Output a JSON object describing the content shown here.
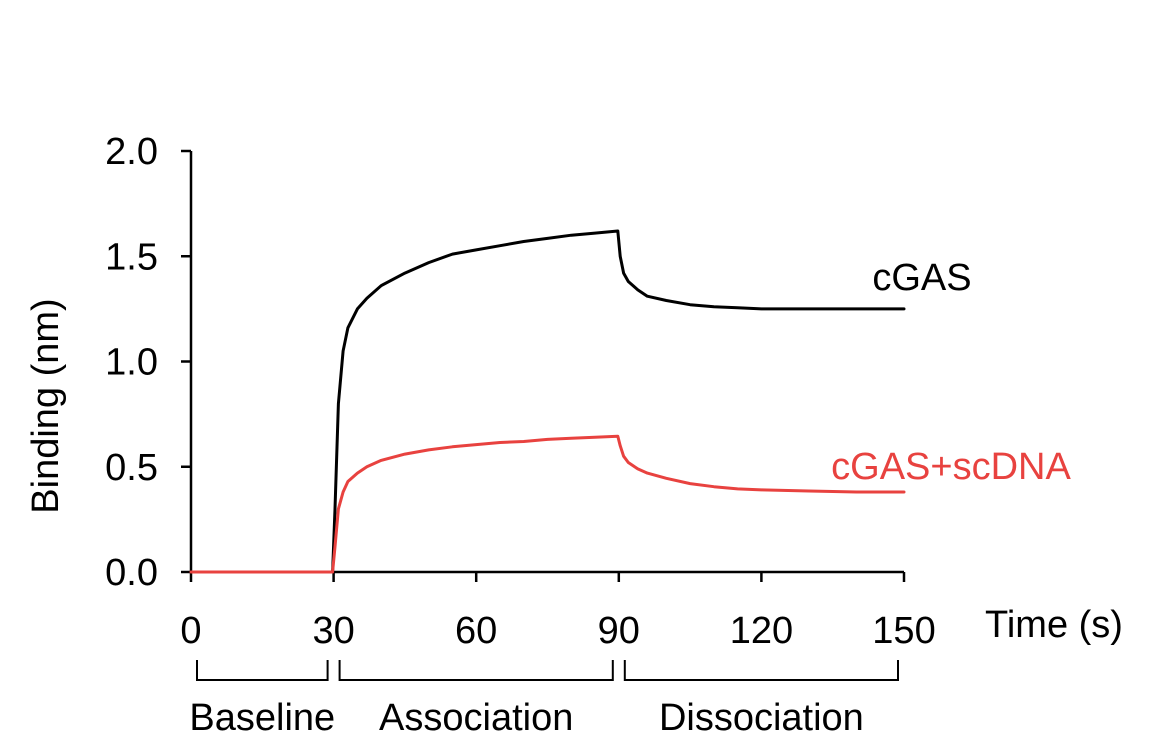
{
  "chart_data": {
    "type": "line",
    "title": "",
    "xlabel": "Time (s)",
    "ylabel": "Binding (nm)",
    "xlim": [
      0,
      150
    ],
    "ylim": [
      0,
      2.0
    ],
    "xticks": [
      0,
      30,
      60,
      90,
      120,
      150
    ],
    "yticks": [
      0.0,
      0.5,
      1.0,
      1.5,
      2.0
    ],
    "xtick_labels": [
      "0",
      "30",
      "60",
      "90",
      "120",
      "150"
    ],
    "ytick_labels": [
      "0.0",
      "0.5",
      "1.0",
      "1.5",
      "2.0"
    ],
    "grid": false,
    "legend": "inline-right",
    "phases": [
      {
        "label": "Baseline",
        "start": 0,
        "end": 30
      },
      {
        "label": "Association",
        "start": 30,
        "end": 90
      },
      {
        "label": "Dissociation",
        "start": 90,
        "end": 150
      }
    ],
    "series": [
      {
        "name": "cGAS",
        "color": "#000000",
        "x": [
          0,
          10,
          20,
          29.8,
          30.3,
          31,
          32,
          33,
          35,
          37,
          40,
          45,
          50,
          55,
          60,
          65,
          70,
          75,
          80,
          85,
          89.8,
          90.3,
          91,
          92,
          94,
          96,
          100,
          105,
          110,
          115,
          120,
          130,
          140,
          150
        ],
        "y": [
          0.0,
          0.0,
          0.0,
          0.0,
          0.3,
          0.8,
          1.05,
          1.16,
          1.25,
          1.3,
          1.36,
          1.42,
          1.47,
          1.51,
          1.53,
          1.55,
          1.57,
          1.585,
          1.6,
          1.61,
          1.62,
          1.5,
          1.42,
          1.38,
          1.34,
          1.31,
          1.29,
          1.27,
          1.26,
          1.255,
          1.25,
          1.25,
          1.25,
          1.25
        ]
      },
      {
        "name": "cGAS+scDNA",
        "color": "#e8423f",
        "x": [
          0,
          10,
          20,
          29.8,
          30.3,
          31,
          32,
          33,
          35,
          37,
          40,
          45,
          50,
          55,
          60,
          65,
          70,
          75,
          80,
          85,
          89.8,
          90.3,
          91,
          92,
          94,
          96,
          100,
          105,
          110,
          115,
          120,
          130,
          140,
          150
        ],
        "y": [
          0.0,
          0.0,
          0.0,
          0.0,
          0.12,
          0.3,
          0.38,
          0.43,
          0.47,
          0.5,
          0.53,
          0.56,
          0.58,
          0.595,
          0.605,
          0.615,
          0.62,
          0.63,
          0.635,
          0.64,
          0.645,
          0.6,
          0.55,
          0.52,
          0.49,
          0.47,
          0.445,
          0.42,
          0.405,
          0.395,
          0.39,
          0.385,
          0.38,
          0.38
        ]
      }
    ]
  }
}
